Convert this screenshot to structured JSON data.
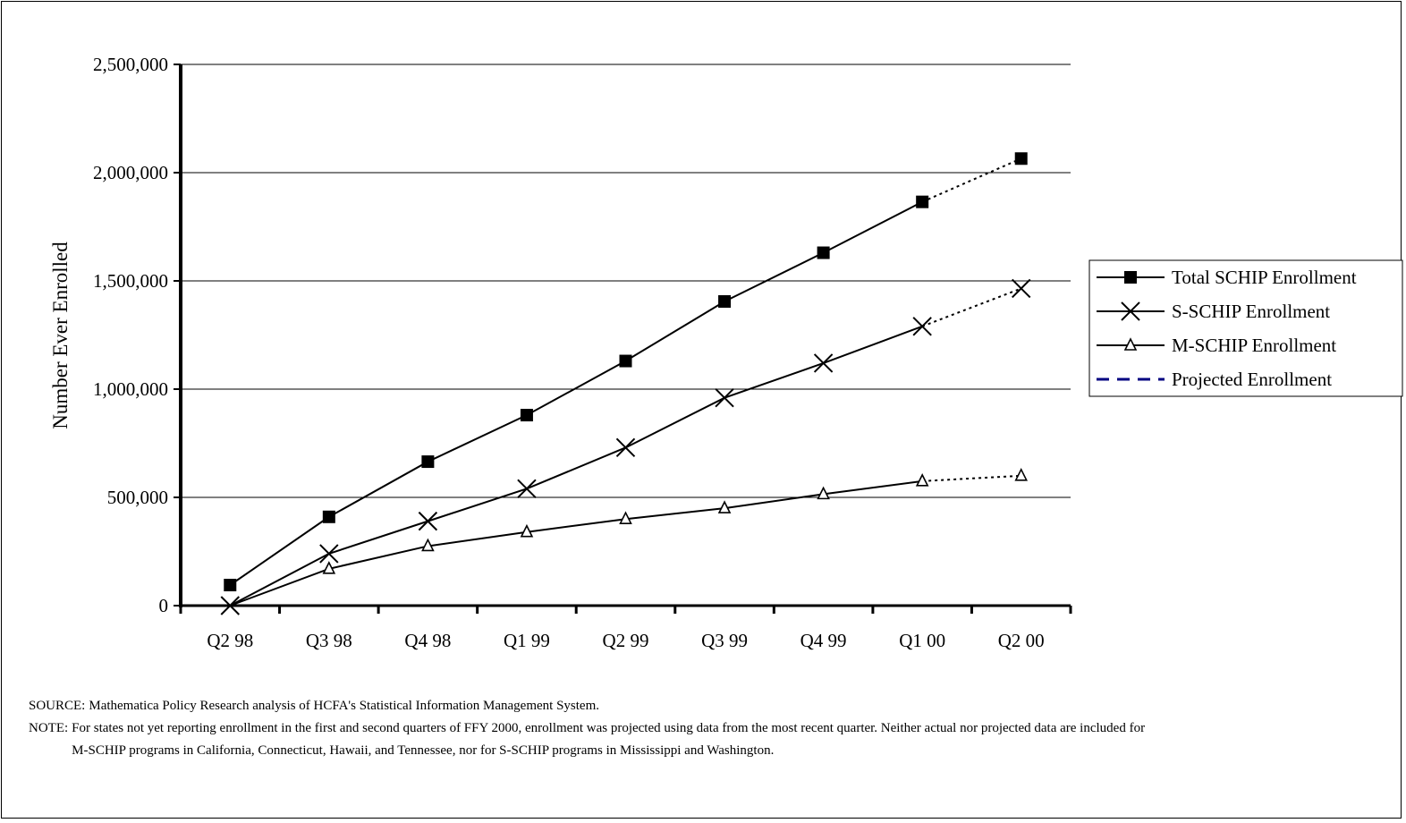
{
  "chart_data": {
    "type": "line",
    "title": "",
    "xlabel": "",
    "ylabel": "Number Ever Enrolled",
    "categories": [
      "Q2 98",
      "Q3 98",
      "Q4 98",
      "Q1 99",
      "Q2 99",
      "Q3 99",
      "Q4 99",
      "Q1 00",
      "Q2 00"
    ],
    "yticks": [
      "0",
      "500,000",
      "1,000,000",
      "1,500,000",
      "2,000,000",
      "2,500,000"
    ],
    "ylim": [
      0,
      2500000
    ],
    "grid": true,
    "legend_position": "right",
    "projected_from_index": 7,
    "series": [
      {
        "name": "Total SCHIP Enrollment",
        "marker": "square",
        "values": [
          95000,
          410000,
          665000,
          880000,
          1130000,
          1405000,
          1630000,
          1865000,
          2065000
        ]
      },
      {
        "name": "S-SCHIP Enrollment",
        "marker": "x",
        "values": [
          0,
          240000,
          390000,
          540000,
          730000,
          960000,
          1120000,
          1290000,
          1465000
        ]
      },
      {
        "name": "M-SCHIP Enrollment",
        "marker": "triangle",
        "values": [
          0,
          170000,
          275000,
          340000,
          400000,
          450000,
          515000,
          575000,
          600000
        ]
      }
    ],
    "legend": [
      {
        "label": "Total SCHIP Enrollment",
        "marker": "square",
        "style": "solid",
        "color": "#000000"
      },
      {
        "label": "S-SCHIP Enrollment",
        "marker": "x",
        "style": "solid",
        "color": "#000000"
      },
      {
        "label": "M-SCHIP Enrollment",
        "marker": "triangle",
        "style": "solid",
        "color": "#000000"
      },
      {
        "label": "Projected Enrollment",
        "marker": "none",
        "style": "dashed",
        "color": "#000080"
      }
    ],
    "colors": {
      "line": "#000000",
      "projected": "#000080",
      "grid": "#000000"
    }
  },
  "footnotes": {
    "source_label": "SOURCE:",
    "source_text": "Mathematica Policy Research analysis of HCFA's Statistical Information Management System.",
    "note_label": "NOTE:",
    "note_text": "For states not yet reporting enrollment in the first and second quarters of FFY 2000, enrollment was projected using data from the most recent quarter. Neither actual nor projected data are included for M-SCHIP programs in California, Connecticut, Hawaii, and Tennessee, nor for S-SCHIP programs in Mississippi and Washington."
  }
}
